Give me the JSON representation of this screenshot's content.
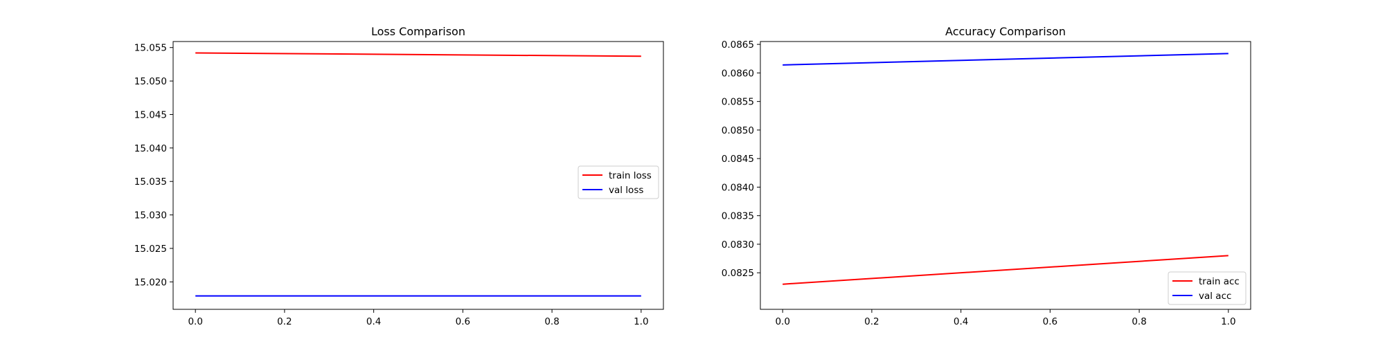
{
  "chart_data": [
    {
      "type": "line",
      "title": "Loss Comparison",
      "xlabel": "",
      "ylabel": "",
      "x": [
        0.0,
        1.0
      ],
      "xlim": [
        -0.05,
        1.05
      ],
      "ylim": [
        15.0159,
        15.0559
      ],
      "xticks": [
        0.0,
        0.2,
        0.4,
        0.6,
        0.8,
        1.0
      ],
      "xtick_labels": [
        "0.0",
        "0.2",
        "0.4",
        "0.6",
        "0.8",
        "1.0"
      ],
      "yticks": [
        15.02,
        15.025,
        15.03,
        15.035,
        15.04,
        15.045,
        15.05,
        15.055
      ],
      "ytick_labels": [
        "15.020",
        "15.025",
        "15.030",
        "15.035",
        "15.040",
        "15.045",
        "15.050",
        "15.055"
      ],
      "series": [
        {
          "name": "train loss",
          "color": "#ff0000",
          "values": [
            15.0542,
            15.0537
          ]
        },
        {
          "name": "val loss",
          "color": "#0000ff",
          "values": [
            15.0179,
            15.0179
          ]
        }
      ],
      "legend_position": "center-right",
      "grid": false
    },
    {
      "type": "line",
      "title": "Accuracy Comparison",
      "xlabel": "",
      "ylabel": "",
      "x": [
        0.0,
        1.0
      ],
      "xlim": [
        -0.05,
        1.05
      ],
      "ylim": [
        0.08186,
        0.08655
      ],
      "xticks": [
        0.0,
        0.2,
        0.4,
        0.6,
        0.8,
        1.0
      ],
      "xtick_labels": [
        "0.0",
        "0.2",
        "0.4",
        "0.6",
        "0.8",
        "1.0"
      ],
      "yticks": [
        0.0825,
        0.083,
        0.0835,
        0.084,
        0.0845,
        0.085,
        0.0855,
        0.086,
        0.0865
      ],
      "ytick_labels": [
        "0.0825",
        "0.0830",
        "0.0835",
        "0.0840",
        "0.0845",
        "0.0850",
        "0.0855",
        "0.0860",
        "0.0865"
      ],
      "series": [
        {
          "name": "train acc",
          "color": "#ff0000",
          "values": [
            0.0823,
            0.0828
          ]
        },
        {
          "name": "val acc",
          "color": "#0000ff",
          "values": [
            0.08614,
            0.08634
          ]
        }
      ],
      "legend_position": "lower-right",
      "grid": false
    }
  ]
}
